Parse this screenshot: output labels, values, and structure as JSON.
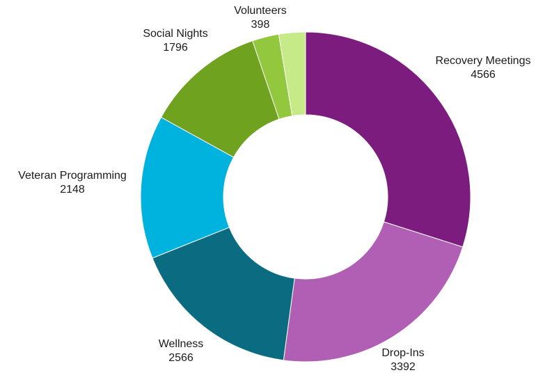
{
  "chart_data": {
    "type": "donut",
    "title": "",
    "slices": [
      {
        "label": "Recovery Meetings",
        "value": 4566,
        "color": "#7b1c7e"
      },
      {
        "label": "Drop-Ins",
        "value": 3392,
        "color": "#b05fb5"
      },
      {
        "label": "Wellness",
        "value": 2566,
        "color": "#0b6b80"
      },
      {
        "label": "Veteran Programming",
        "value": 2148,
        "color": "#00b3df"
      },
      {
        "label": "Social Nights",
        "value": 1796,
        "color": "#6ea21f"
      },
      {
        "label": "Volunteers",
        "value": 398,
        "color": "#93c83e"
      },
      {
        "label": "Volunteers",
        "value": 398,
        "color": "#c7ea88"
      }
    ],
    "start_angle": "12 o'clock",
    "direction": "clockwise",
    "legend": "none",
    "labels": "outside, category name above value"
  }
}
